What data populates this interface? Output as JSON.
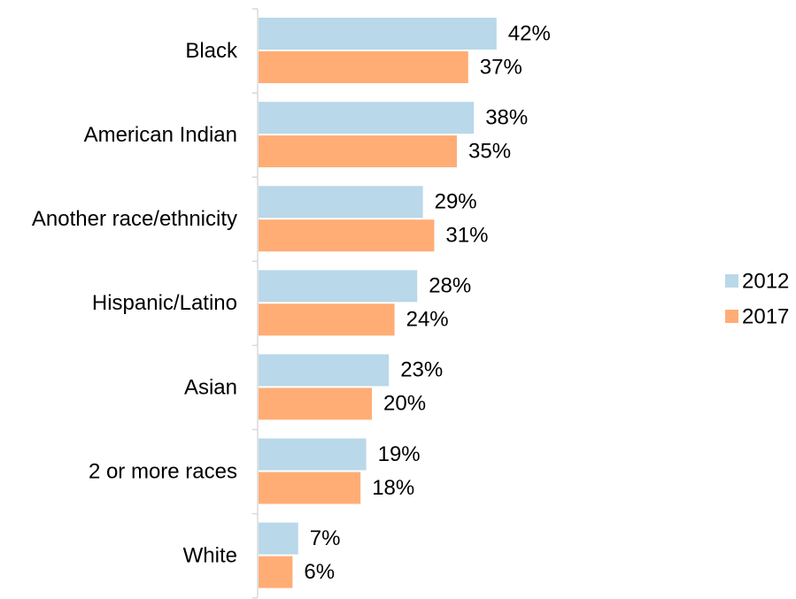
{
  "chart_data": {
    "type": "bar",
    "orientation": "horizontal",
    "categories": [
      "Black",
      "American Indian",
      "Another race/ethnicity",
      "Hispanic/Latino",
      "Asian",
      "2 or more races",
      "White"
    ],
    "series": [
      {
        "name": "2012",
        "values": [
          42,
          38,
          29,
          28,
          23,
          19,
          7
        ],
        "labels": [
          "42%",
          "38%",
          "29%",
          "28%",
          "23%",
          "19%",
          "7%"
        ],
        "color": "#b9d8e9"
      },
      {
        "name": "2017",
        "values": [
          37,
          35,
          31,
          24,
          20,
          18,
          6
        ],
        "labels": [
          "37%",
          "35%",
          "31%",
          "24%",
          "20%",
          "18%",
          "6%"
        ],
        "color": "#ffad75"
      }
    ],
    "value_unit": "%",
    "xlim": [
      0,
      45
    ],
    "grid": false,
    "legend_position": "right"
  }
}
